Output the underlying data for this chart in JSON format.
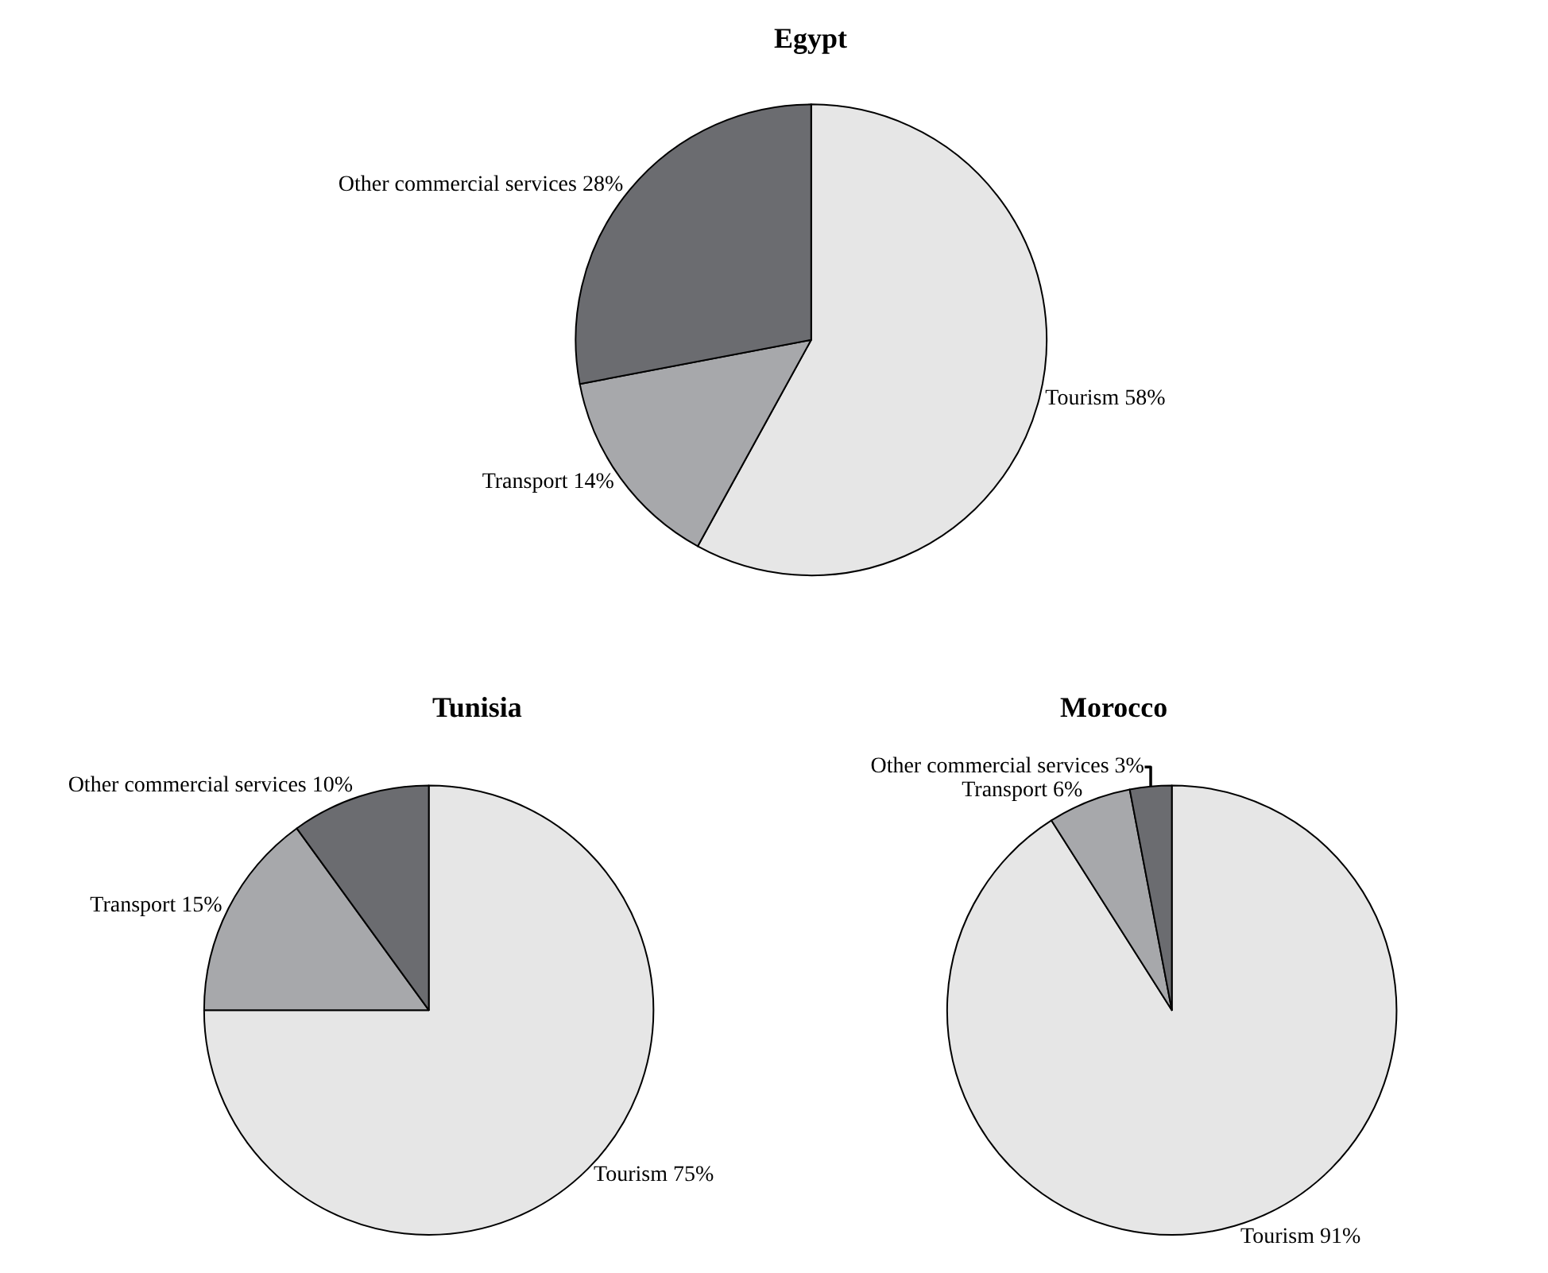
{
  "chart_data": [
    {
      "type": "pie",
      "title": "Egypt",
      "categories": [
        "Tourism",
        "Transport",
        "Other commercial services"
      ],
      "values": [
        58,
        14,
        28
      ],
      "value_labels": [
        "58%",
        "14%",
        "28%"
      ],
      "colors": [
        "#e6e6e6",
        "#a7a8ab",
        "#6b6c70"
      ],
      "legend": false
    },
    {
      "type": "pie",
      "title": "Tunisia",
      "categories": [
        "Tourism",
        "Transport",
        "Other commercial services"
      ],
      "values": [
        75,
        15,
        10
      ],
      "value_labels": [
        "75%",
        "15%",
        "10%"
      ],
      "colors": [
        "#e6e6e6",
        "#a7a8ab",
        "#6b6c70"
      ],
      "legend": false
    },
    {
      "type": "pie",
      "title": "Morocco",
      "categories": [
        "Tourism",
        "Transport",
        "Other commercial services"
      ],
      "values": [
        91,
        6,
        3
      ],
      "value_labels": [
        "91%",
        "6%",
        "3%"
      ],
      "colors": [
        "#e6e6e6",
        "#a7a8ab",
        "#6b6c70"
      ],
      "legend": false
    }
  ]
}
